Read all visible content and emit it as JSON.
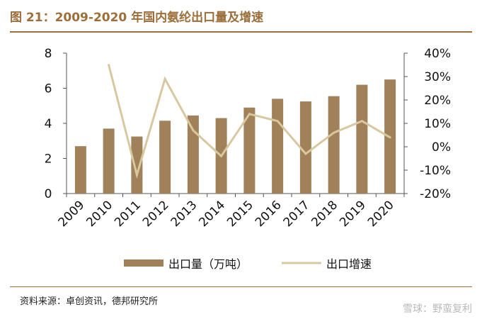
{
  "header": {
    "title": "图 21：2009-2020 年国内氨纶出口量及增速"
  },
  "source": "资料来源：卓创资讯，德邦研究所",
  "watermark": "雪球：野蛮复利",
  "colors": {
    "accent": "#9b6e3a",
    "bar": "#a0815a",
    "line": "#d8c8a0"
  },
  "chart_data": {
    "type": "bar",
    "categories": [
      "2009",
      "2010",
      "2011",
      "2012",
      "2013",
      "2014",
      "2015",
      "2016",
      "2017",
      "2018",
      "2019",
      "2020"
    ],
    "series": [
      {
        "name": "出口量（万吨）",
        "type": "bar",
        "axis": "left",
        "values": [
          2.7,
          3.7,
          3.25,
          4.15,
          4.45,
          4.3,
          4.9,
          5.4,
          5.25,
          5.55,
          6.2,
          6.5
        ]
      },
      {
        "name": "出口增速",
        "type": "line",
        "axis": "right",
        "values": [
          null,
          35,
          -12,
          29,
          7,
          -4,
          14,
          11,
          -3,
          6,
          11,
          4
        ]
      }
    ],
    "left_axis": {
      "min": 0,
      "max": 8,
      "ticks": [
        "0",
        "2",
        "4",
        "6",
        "8"
      ]
    },
    "right_axis": {
      "min": -20,
      "max": 40,
      "ticks": [
        "-20%",
        "-10%",
        "0%",
        "10%",
        "20%",
        "30%",
        "40%"
      ]
    },
    "legend": [
      "出口量（万吨）",
      "出口增速"
    ],
    "legend_position": "bottom"
  }
}
